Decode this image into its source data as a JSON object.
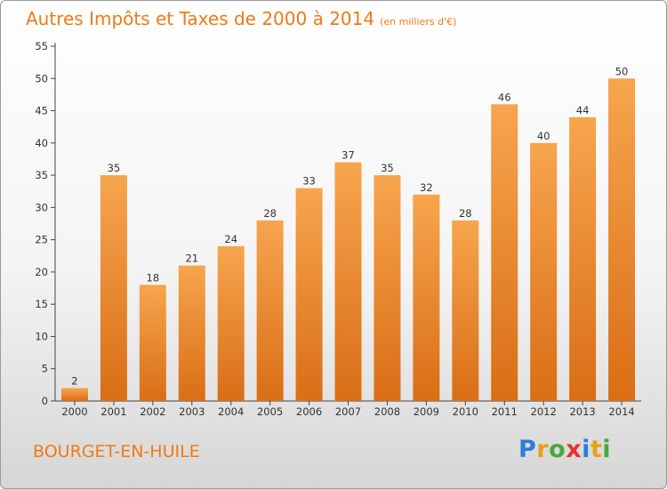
{
  "header": {
    "title": "Autres Impôts et Taxes de 2000 à 2014",
    "unit": "(en milliers d'€)"
  },
  "footer": {
    "place": "BOURGET-EN-HUILE",
    "logo": "Proxiti",
    "logo_colors": [
      "#2b7fd6",
      "#e8a018",
      "#4aa83a",
      "#e2332f",
      "#2b7fd6",
      "#e8a018",
      "#4aa83a"
    ]
  },
  "chart_data": {
    "type": "bar",
    "title": "Autres Impôts et Taxes de 2000 à 2014",
    "subtitle": "(en milliers d'€)",
    "xlabel": "",
    "ylabel": "",
    "categories": [
      "2000",
      "2001",
      "2002",
      "2003",
      "2004",
      "2005",
      "2006",
      "2007",
      "2008",
      "2009",
      "2010",
      "2011",
      "2012",
      "2013",
      "2014"
    ],
    "values": [
      2,
      35,
      18,
      21,
      24,
      28,
      33,
      37,
      35,
      32,
      28,
      46,
      40,
      44,
      50
    ],
    "ylim": [
      0,
      55
    ],
    "yticks": [
      0,
      5,
      10,
      15,
      20,
      25,
      30,
      35,
      40,
      45,
      50,
      55
    ],
    "grid": false,
    "bar_color_top": "#f7a54e",
    "bar_color_bottom": "#d96e16"
  }
}
